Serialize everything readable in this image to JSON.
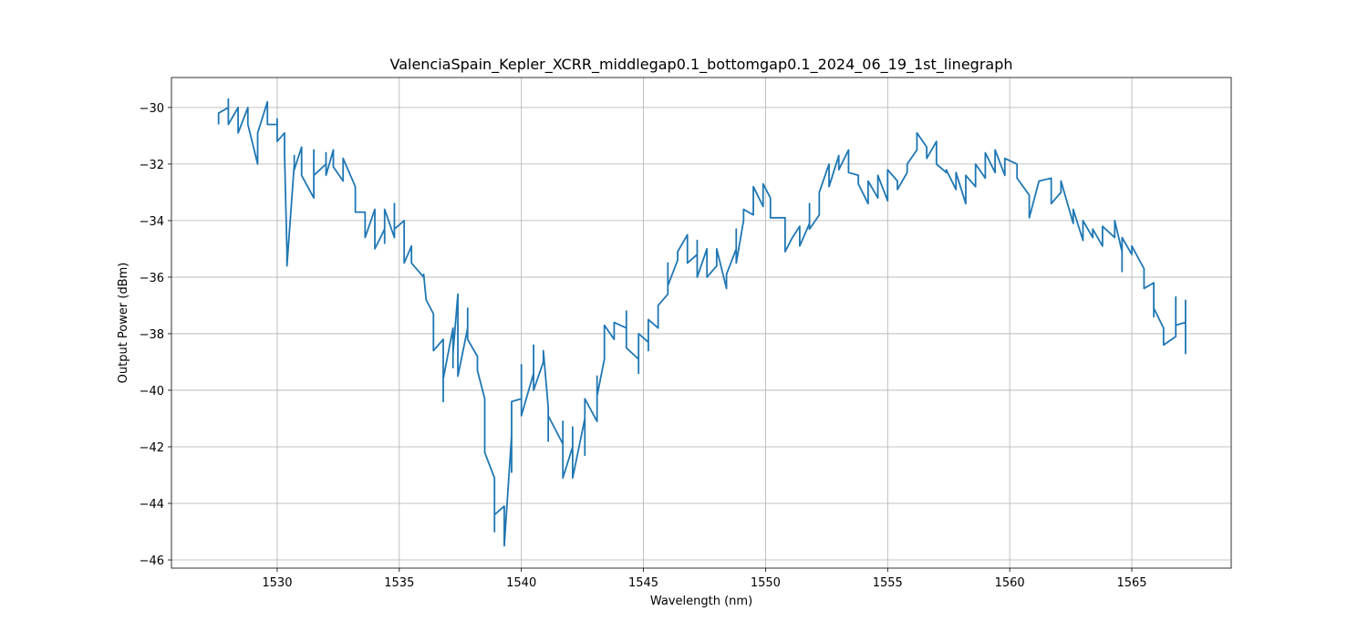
{
  "chart_data": {
    "type": "line",
    "title": "ValenciaSpain_Kepler_XCRR_middlegap0.1_bottomgap0.1_2024_06_19_1st_linegraph",
    "x_label": "Wavelength (nm)",
    "y_label": "Output Power (dBm)",
    "xlim": [
      1525.67,
      1569.07
    ],
    "ylim": [
      -46.29,
      -28.94
    ],
    "xticks": [
      1530,
      1535,
      1540,
      1545,
      1550,
      1555,
      1560,
      1565
    ],
    "yticks": [
      {
        "value": -46,
        "label": "−46"
      },
      {
        "value": -44,
        "label": "−44"
      },
      {
        "value": -42,
        "label": "−42"
      },
      {
        "value": -40,
        "label": "−40"
      },
      {
        "value": -38,
        "label": "−38"
      },
      {
        "value": -36,
        "label": "−36"
      },
      {
        "value": -34,
        "label": "−34"
      },
      {
        "value": -32,
        "label": "−32"
      },
      {
        "value": -30,
        "label": "−30"
      }
    ],
    "grid": true,
    "series": [
      {
        "name": "Output Power",
        "color": "#1f77b4",
        "x": [
          1527.6,
          1527.6,
          1528.0,
          1528.0,
          1528.0,
          1528.4,
          1528.4,
          1528.8,
          1528.8,
          1529.2,
          1529.2,
          1529.6,
          1529.6,
          1530.0,
          1530.0,
          1530.0,
          1530.3,
          1530.3,
          1530.4,
          1530.4,
          1530.7,
          1530.7,
          1530.7,
          1531.0,
          1531.0,
          1531.5,
          1531.5,
          1531.5,
          1532.0,
          1532.0,
          1532.0,
          1532.3,
          1532.3,
          1532.7,
          1532.7,
          1533.2,
          1533.2,
          1533.6,
          1533.6,
          1533.6,
          1534.0,
          1534.0,
          1534.4,
          1534.4,
          1534.4,
          1534.8,
          1534.8,
          1534.8,
          1535.2,
          1535.2,
          1535.2,
          1535.5,
          1535.5,
          1536.0,
          1536.0,
          1536.1,
          1536.4,
          1536.4,
          1536.4,
          1536.8,
          1536.8,
          1536.8,
          1537.2,
          1537.2,
          1537.2,
          1537.4,
          1537.4,
          1537.8,
          1537.8,
          1537.8,
          1538.2,
          1538.2,
          1538.5,
          1538.5,
          1538.9,
          1538.9,
          1538.9,
          1539.3,
          1539.3,
          1539.6,
          1539.6,
          1539.6,
          1540.0,
          1540.0,
          1540.0,
          1540.5,
          1540.5,
          1540.5,
          1540.9,
          1540.9,
          1541.1,
          1541.1,
          1541.1,
          1541.7,
          1541.7,
          1541.7,
          1542.1,
          1542.1,
          1542.1,
          1542.6,
          1542.6,
          1542.6,
          1543.1,
          1543.1,
          1543.1,
          1543.4,
          1543.4,
          1543.8,
          1543.8,
          1543.8,
          1544.3,
          1544.3,
          1544.3,
          1544.8,
          1544.8,
          1544.8,
          1545.2,
          1545.2,
          1545.2,
          1545.6,
          1545.6,
          1546.0,
          1546.0,
          1546.0,
          1546.4,
          1546.4,
          1546.8,
          1546.8,
          1547.2,
          1547.2,
          1547.2,
          1547.6,
          1547.6,
          1548.0,
          1548.0,
          1548.4,
          1548.4,
          1548.8,
          1548.8,
          1548.8,
          1549.1,
          1549.1,
          1549.5,
          1549.5,
          1549.9,
          1549.9,
          1550.2,
          1550.2,
          1550.8,
          1550.8,
          1551.1,
          1551.4,
          1551.4,
          1551.8,
          1551.8,
          1551.8,
          1552.2,
          1552.2,
          1552.6,
          1552.6,
          1553.0,
          1553.0,
          1553.4,
          1553.4,
          1553.8,
          1553.8,
          1554.2,
          1554.2,
          1554.6,
          1554.6,
          1555.0,
          1555.0,
          1555.4,
          1555.4,
          1555.8,
          1555.8,
          1556.2,
          1556.2,
          1556.6,
          1556.6,
          1557.0,
          1557.0,
          1557.4,
          1557.4,
          1557.8,
          1557.8,
          1558.2,
          1558.2,
          1558.6,
          1558.6,
          1559.0,
          1559.0,
          1559.4,
          1559.4,
          1559.8,
          1559.8,
          1560.3,
          1560.3,
          1560.8,
          1560.8,
          1561.2,
          1561.2,
          1561.7,
          1561.7,
          1562.1,
          1562.1,
          1562.6,
          1562.6,
          1563.0,
          1563.0,
          1563.4,
          1563.4,
          1563.8,
          1563.8,
          1564.3,
          1564.3,
          1564.6,
          1564.6,
          1564.6,
          1565.0,
          1565.0,
          1565.5,
          1565.5,
          1565.9,
          1565.9,
          1565.9,
          1566.3,
          1566.3,
          1566.8,
          1566.8,
          1566.8,
          1567.2,
          1567.2,
          1567.2
        ],
        "values": [
          -30.6,
          -30.2,
          -30.0,
          -29.7,
          -30.6,
          -30.0,
          -30.9,
          -30.0,
          -30.6,
          -32.0,
          -30.9,
          -29.8,
          -30.6,
          -30.6,
          -30.4,
          -31.2,
          -30.9,
          -31.6,
          -35.1,
          -35.6,
          -32.0,
          -31.7,
          -32.2,
          -31.4,
          -32.4,
          -33.2,
          -31.5,
          -32.4,
          -32.0,
          -31.6,
          -32.4,
          -31.5,
          -32.1,
          -32.6,
          -31.8,
          -32.8,
          -33.7,
          -33.7,
          -34.3,
          -34.6,
          -33.6,
          -35.0,
          -34.3,
          -34.8,
          -33.6,
          -34.6,
          -33.4,
          -34.3,
          -34.0,
          -35.1,
          -35.5,
          -34.9,
          -35.5,
          -36.0,
          -35.9,
          -36.8,
          -37.3,
          -38.1,
          -38.6,
          -38.2,
          -40.4,
          -39.6,
          -37.8,
          -39.2,
          -38.7,
          -36.6,
          -39.5,
          -37.8,
          -37.1,
          -38.2,
          -38.8,
          -39.3,
          -40.3,
          -42.2,
          -43.1,
          -45.0,
          -44.4,
          -44.1,
          -45.5,
          -41.6,
          -42.9,
          -40.4,
          -40.3,
          -39.1,
          -40.9,
          -39.4,
          -38.4,
          -40.0,
          -39.0,
          -38.6,
          -40.6,
          -41.8,
          -40.9,
          -41.9,
          -41.1,
          -43.1,
          -42.0,
          -41.3,
          -43.1,
          -41.0,
          -42.3,
          -40.3,
          -41.1,
          -39.5,
          -40.2,
          -38.9,
          -37.7,
          -38.2,
          -38.1,
          -37.6,
          -37.8,
          -37.2,
          -38.5,
          -38.9,
          -39.4,
          -38.0,
          -38.3,
          -38.6,
          -37.5,
          -37.8,
          -37.0,
          -36.6,
          -35.5,
          -36.3,
          -35.4,
          -35.1,
          -34.5,
          -35.5,
          -35.2,
          -34.7,
          -36.0,
          -35.0,
          -36.0,
          -35.6,
          -35.0,
          -36.4,
          -35.9,
          -35.0,
          -34.3,
          -35.5,
          -34.0,
          -33.6,
          -33.8,
          -32.8,
          -33.5,
          -32.7,
          -33.2,
          -33.9,
          -33.9,
          -35.1,
          -34.6,
          -34.2,
          -34.9,
          -34.1,
          -33.4,
          -34.3,
          -33.8,
          -33.0,
          -32.0,
          -32.8,
          -31.7,
          -32.2,
          -31.5,
          -32.3,
          -32.4,
          -32.7,
          -33.4,
          -32.6,
          -33.2,
          -32.4,
          -33.3,
          -32.2,
          -32.6,
          -32.9,
          -32.3,
          -32.0,
          -31.5,
          -30.9,
          -31.4,
          -31.8,
          -31.2,
          -32.0,
          -32.3,
          -32.2,
          -32.9,
          -32.3,
          -33.4,
          -32.4,
          -32.8,
          -32.0,
          -32.5,
          -31.6,
          -32.3,
          -31.5,
          -32.4,
          -31.8,
          -32.0,
          -32.5,
          -33.1,
          -33.9,
          -32.6,
          -32.6,
          -32.5,
          -33.4,
          -33.0,
          -32.6,
          -34.1,
          -33.6,
          -34.7,
          -34.0,
          -34.6,
          -34.3,
          -34.9,
          -34.2,
          -34.6,
          -34.0,
          -35.1,
          -35.8,
          -34.6,
          -35.2,
          -34.9,
          -35.7,
          -36.4,
          -36.2,
          -37.4,
          -37.1,
          -37.8,
          -38.4,
          -38.1,
          -36.7,
          -37.7,
          -37.6,
          -38.7,
          -36.8
        ]
      }
    ]
  }
}
